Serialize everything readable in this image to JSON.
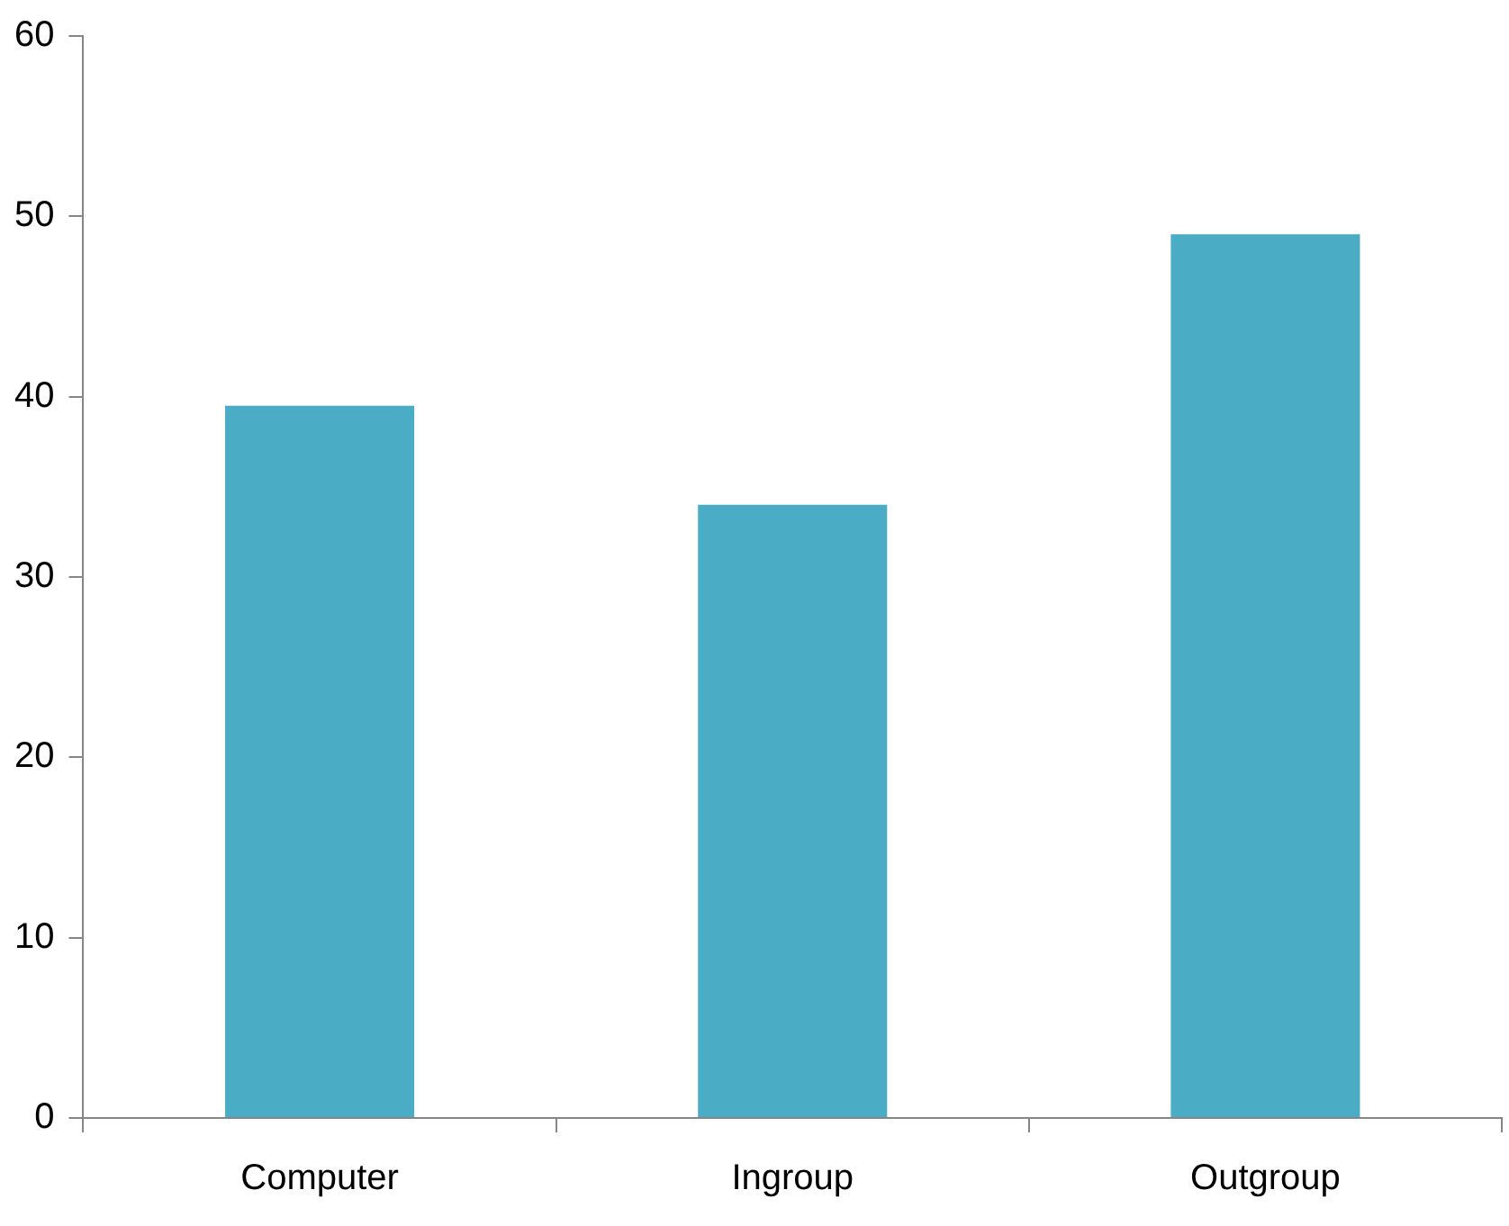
{
  "chart_data": {
    "type": "bar",
    "categories": [
      "Computer",
      "Ingroup",
      "Outgroup"
    ],
    "values": [
      39.5,
      34,
      49
    ],
    "color": "#4bacc6",
    "ylim": [
      0,
      60
    ],
    "yticks": [
      0,
      10,
      20,
      30,
      40,
      50,
      60
    ]
  }
}
